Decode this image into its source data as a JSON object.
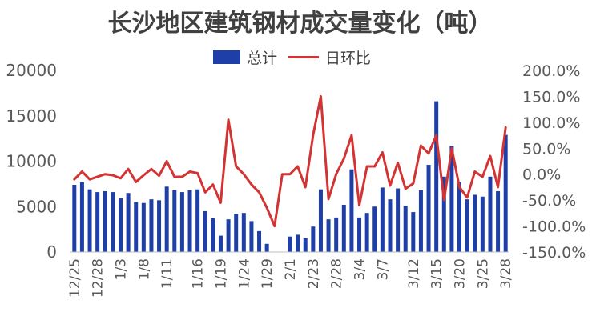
{
  "chart_data": {
    "type": "bar",
    "title": "长沙地区建筑钢材成交量变化（吨）",
    "legend": [
      "总计",
      "日环比"
    ],
    "legend_position": "top",
    "grid": false,
    "y_left": {
      "ticks": [
        "0",
        "5000",
        "10000",
        "15000",
        "20000"
      ],
      "ylim": [
        0,
        20000
      ]
    },
    "y_right": {
      "ticks": [
        "-150.0%",
        "-100.0%",
        "-50.0%",
        "0.0%",
        "50.0%",
        "100.0%",
        "150.0%",
        "200.0%"
      ],
      "ylim": [
        -150,
        200
      ]
    },
    "x_tick_labels": [
      "12/25",
      "12/28",
      "1/3",
      "1/8",
      "1/11",
      "1/16",
      "1/19",
      "1/24",
      "1/29",
      "2/1",
      "2/23",
      "2/28",
      "3/4",
      "3/7",
      "3/12",
      "3/15",
      "3/20",
      "3/25",
      "3/28"
    ],
    "series": [
      {
        "name": "总计",
        "kind": "bar",
        "axis": "left",
        "color": "#1f3fa8",
        "values": [
          7400,
          7700,
          6900,
          6600,
          6700,
          6600,
          5900,
          6500,
          5500,
          5400,
          5800,
          5700,
          7200,
          6800,
          6600,
          6800,
          6900,
          4500,
          3700,
          1800,
          3600,
          4200,
          4300,
          3400,
          2300,
          900,
          0,
          0,
          1700,
          1900,
          1500,
          2800,
          6900,
          3600,
          3800,
          5200,
          9100,
          3800,
          4300,
          5000,
          7100,
          5800,
          7000,
          5100,
          4400,
          6800,
          9600,
          16600,
          8300,
          11700,
          7700,
          5800,
          6300,
          6100,
          8300,
          6700,
          12900
        ]
      },
      {
        "name": "日环比",
        "kind": "line",
        "axis": "right",
        "color": "#d23333",
        "values": [
          -10,
          5,
          -10,
          -5,
          0,
          -2,
          -8,
          10,
          -15,
          -2,
          10,
          -3,
          25,
          -5,
          -5,
          5,
          2,
          -35,
          -20,
          -55,
          105,
          15,
          0,
          -20,
          -35,
          -65,
          -100,
          0,
          0,
          15,
          -25,
          75,
          150,
          -48,
          0,
          30,
          75,
          -60,
          15,
          15,
          42,
          -22,
          22,
          -28,
          -18,
          55,
          40,
          75,
          -50,
          50,
          -25,
          -45,
          5,
          -5,
          35,
          -25,
          90
        ]
      }
    ]
  }
}
